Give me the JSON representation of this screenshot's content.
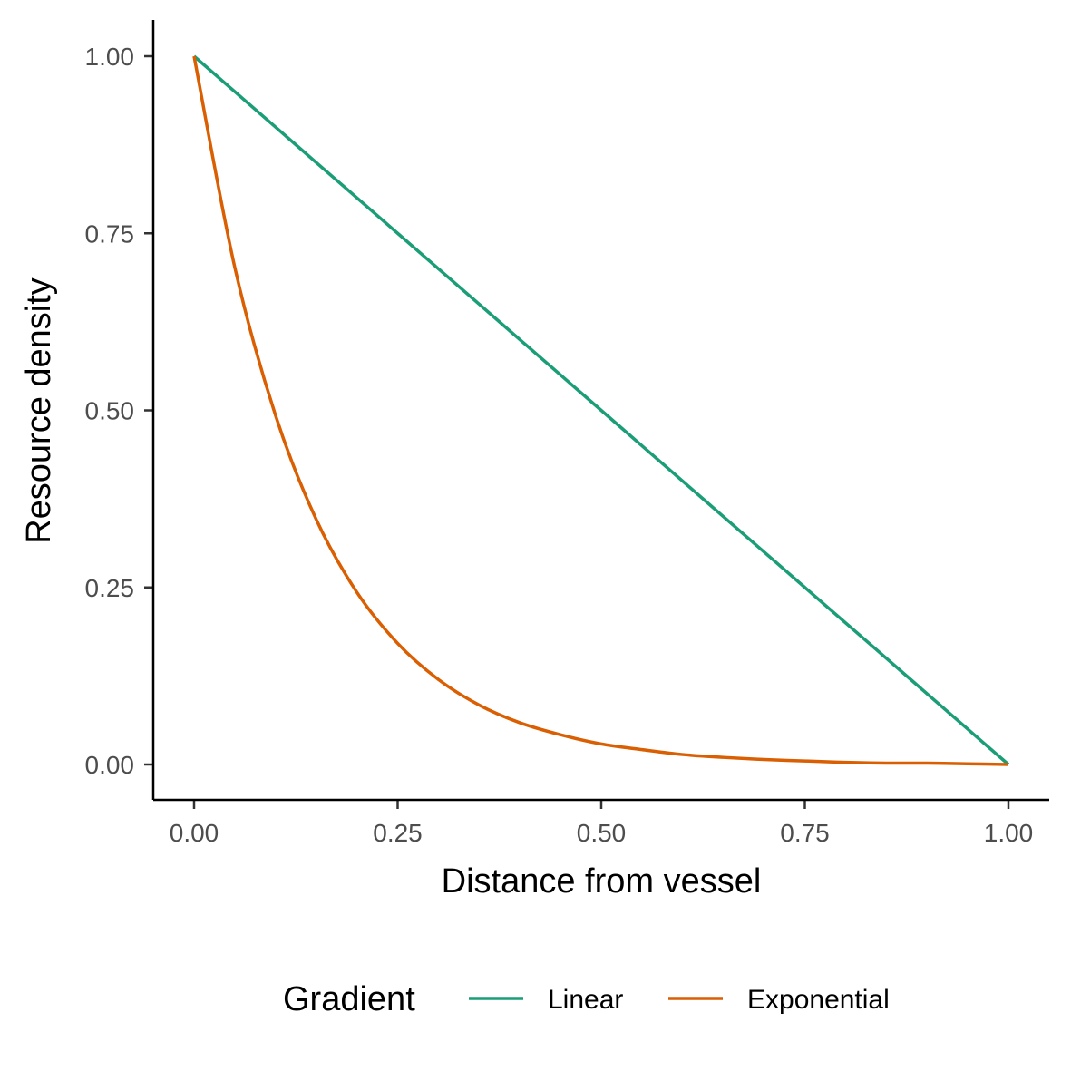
{
  "chart_data": {
    "type": "line",
    "title": "",
    "xlabel": "Distance from vessel",
    "ylabel": "Resource density",
    "xlim": [
      0,
      1
    ],
    "ylim": [
      0,
      1
    ],
    "grid": false,
    "x_ticks": [
      "0.00",
      "0.25",
      "0.50",
      "0.75",
      "1.00"
    ],
    "y_ticks": [
      "0.00",
      "0.25",
      "0.50",
      "0.75",
      "1.00"
    ],
    "x": [
      0.0,
      0.05,
      0.1,
      0.15,
      0.2,
      0.25,
      0.3,
      0.35,
      0.4,
      0.45,
      0.5,
      0.55,
      0.6,
      0.65,
      0.7,
      0.75,
      0.8,
      0.85,
      0.9,
      0.95,
      1.0
    ],
    "series": [
      {
        "name": "Linear",
        "color": "#1b9e77",
        "values": [
          1.0,
          0.95,
          0.9,
          0.85,
          0.8,
          0.75,
          0.7,
          0.65,
          0.6,
          0.55,
          0.5,
          0.45,
          0.4,
          0.35,
          0.3,
          0.25,
          0.2,
          0.15,
          0.1,
          0.05,
          0.0
        ]
      },
      {
        "name": "Exponential",
        "color": "#d95f02",
        "values": [
          1.0,
          0.702,
          0.493,
          0.346,
          0.243,
          0.171,
          0.12,
          0.084,
          0.059,
          0.042,
          0.029,
          0.021,
          0.014,
          0.01,
          0.007,
          0.005,
          0.003,
          0.002,
          0.002,
          0.001,
          0.0
        ]
      }
    ],
    "legend": {
      "title": "Gradient",
      "position": "bottom",
      "entries": [
        "Linear",
        "Exponential"
      ]
    }
  }
}
